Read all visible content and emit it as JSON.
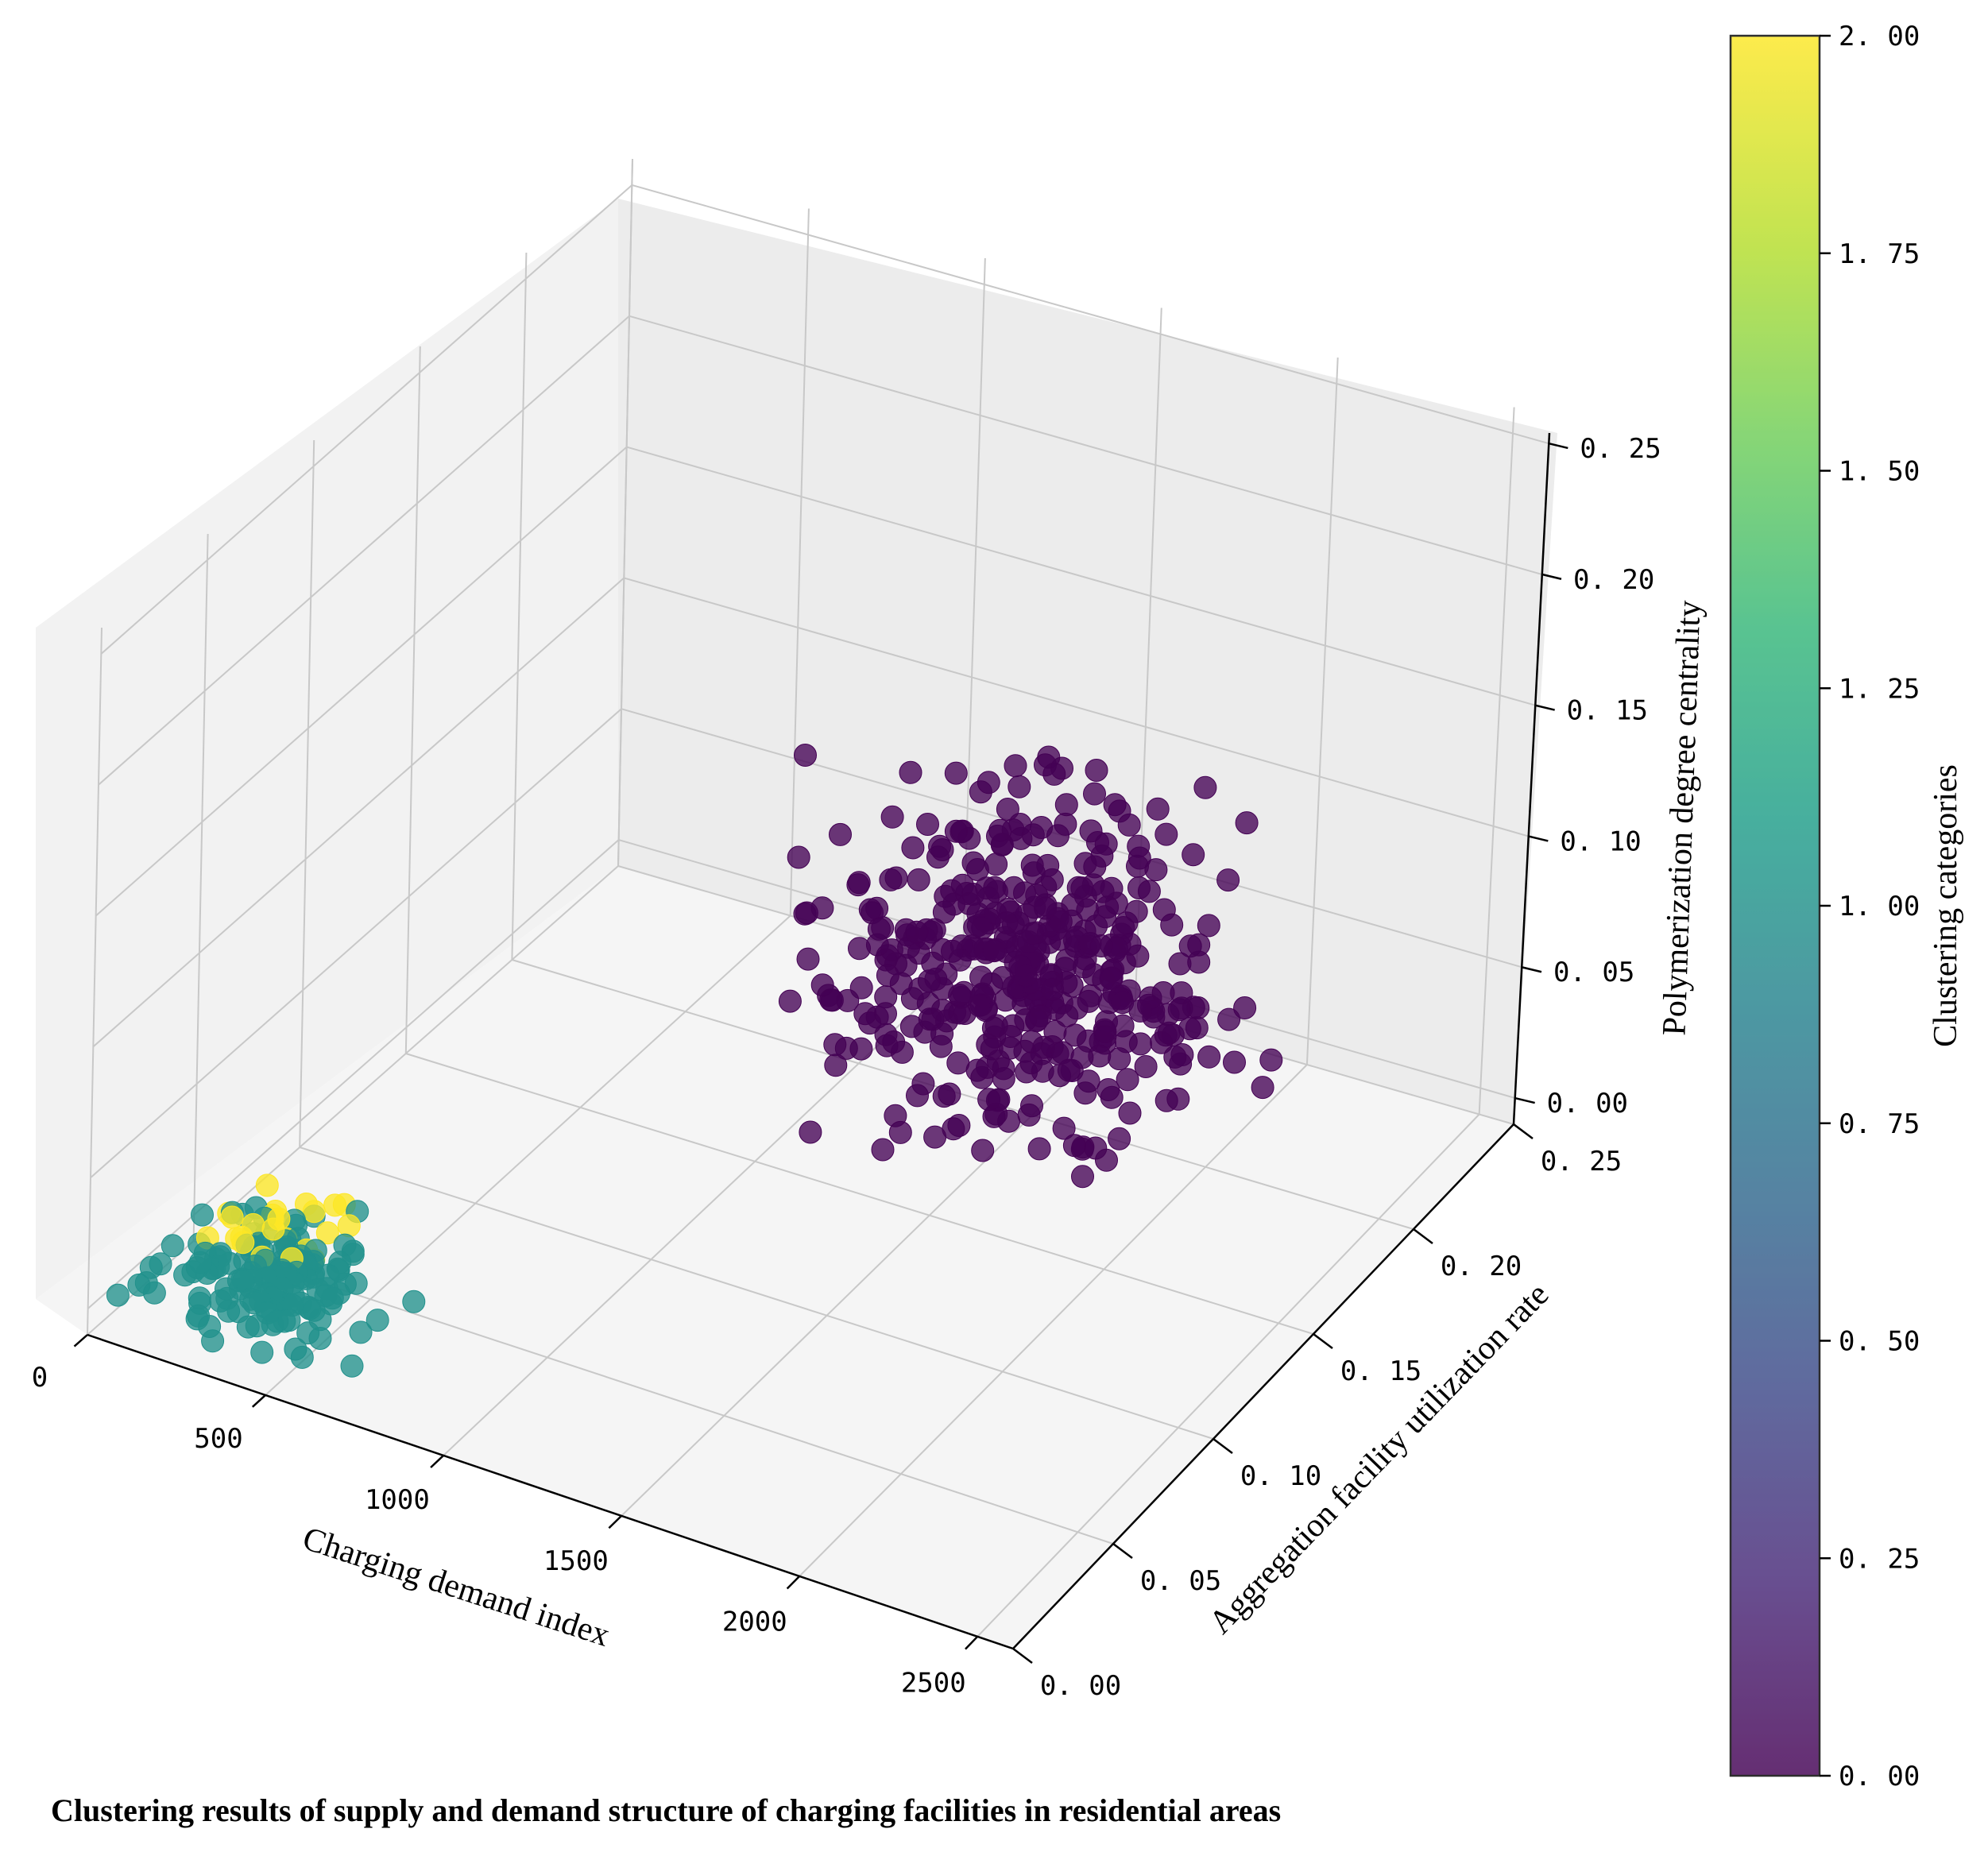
{
  "chart_data": {
    "type": "scatter",
    "projection": "3d",
    "caption": "Clustering results of supply and demand structure of charging facilities in residential areas",
    "xlabel": "Charging demand index",
    "ylabel": "Aggregation facility utilization rate",
    "zlabel": "Polymerization degree centrality",
    "xlim": [
      0,
      2600
    ],
    "ylim": [
      0,
      0.25
    ],
    "zlim": [
      -0.01,
      0.26
    ],
    "x_ticks": [
      "0",
      "500",
      "1000",
      "1500",
      "2000",
      "2500"
    ],
    "y_ticks": [
      "0. 00",
      "0. 05",
      "0. 10",
      "0. 15",
      "0. 20",
      "0. 25"
    ],
    "z_ticks": [
      "0. 00",
      "0. 05",
      "0. 10",
      "0. 15",
      "0. 20",
      "0. 25"
    ],
    "colorbar": {
      "label": "Clustering categories",
      "range": [
        0,
        2
      ],
      "ticks": [
        "0. 00",
        "0. 25",
        "0. 50",
        "0. 75",
        "1. 00",
        "1. 25",
        "1. 50",
        "1. 75",
        "2. 00"
      ],
      "colors": [
        "#440154",
        "#482878",
        "#3e4989",
        "#31688e",
        "#26828e",
        "#1f9e89",
        "#35b779",
        "#6ece58",
        "#b5de2b",
        "#fde725"
      ]
    },
    "clusters": [
      {
        "category": 0,
        "color": "#440154",
        "center": [
          1450,
          0.2,
          0.045
        ],
        "spread": [
          520,
          0.04,
          0.035
        ],
        "count": 420
      },
      {
        "category": 1,
        "color": "#21918c",
        "center": [
          350,
          0.03,
          0.004
        ],
        "spread": [
          300,
          0.02,
          0.004
        ],
        "count": 150
      },
      {
        "category": 2,
        "color": "#fde725",
        "center": [
          260,
          0.05,
          0.006
        ],
        "spread": [
          150,
          0.02,
          0.004
        ],
        "count": 24
      }
    ]
  }
}
